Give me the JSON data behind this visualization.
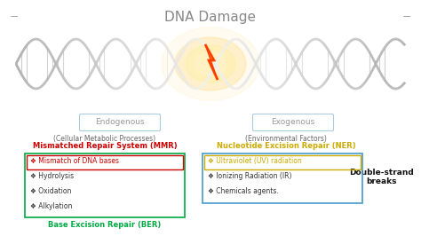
{
  "title": "DNA Damage",
  "title_fontsize": 11,
  "title_color": "#888888",
  "bg_color": "#ffffff",
  "endogenous_label": "Endogenous",
  "exogenous_label": "Exogenous",
  "cellular_subtitle": "(Cellular Metabolic Processes)",
  "environmental_subtitle": "(Environmental Factors)",
  "mmr_title": "Mismatched Repair System (MMR)",
  "mmr_color": "#cc0000",
  "ner_title": "Nucleotide Excision Repair (NER)",
  "ner_color": "#ccaa00",
  "ber_title": "Base Excision Repair (BER)",
  "ber_color": "#00aa44",
  "mmr_items": [
    "Mismatch of DNA bases",
    "Hydrolysis",
    "Oxidation",
    "Alkylation"
  ],
  "ner_items": [
    "Ultraviolet (UV) radiation",
    "Ionizing Radiation (IR)",
    "Chemicals agents."
  ],
  "double_strand_text": "Double-strand\nbreaks",
  "inner_box_color_left": "#cc0000",
  "inner_box_color_right": "#ccaa00",
  "outer_box_color_left": "#00aa44",
  "outer_box_color_right": "#4499cc",
  "endogenous_box_color": "#aaccdd",
  "exogenous_box_color": "#aaccdd",
  "subtitle_color": "#666666",
  "item_color": "#333333",
  "small_font": 5.5,
  "medium_font": 6.5,
  "label_font": 7.0,
  "ds_font": 6.5,
  "dash_color": "#888888"
}
